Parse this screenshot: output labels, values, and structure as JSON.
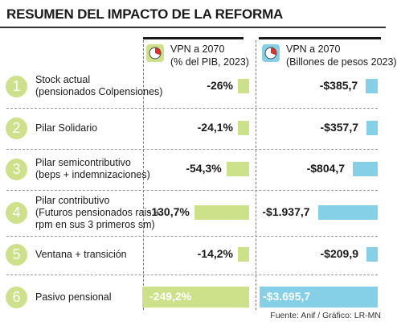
{
  "title": "RESUMEN DEL IMPACTO DE LA REFORMA",
  "colors": {
    "green": "#cde08a",
    "blue": "#85d0e6",
    "circle": "#cde08a"
  },
  "columns": [
    {
      "line1": "VPN a 2070",
      "line2": "(% del PIB, 2023)",
      "icon": "pie-chart-icon"
    },
    {
      "line1": "VPN a 2070",
      "line2": "(Billones de pesos 2023)",
      "icon": "pie-chart-icon"
    }
  ],
  "chart_data": {
    "type": "bar",
    "title": "RESUMEN DEL IMPACTO DE LA REFORMA",
    "categories": [
      "Stock actual (pensionados Colpensiones)",
      "Pilar Solidario",
      "Pilar semicontributivo (beps + indemnizaciones)",
      "Pilar contributivo (Futuros pensionados rais + rpm en sus 3 primeros sm)",
      "Ventana + transición",
      "Pasivo pensional"
    ],
    "series": [
      {
        "name": "VPN a 2070 (% del PIB, 2023)",
        "values": [
          -26,
          -24.1,
          -54.3,
          -130.7,
          -14.2,
          -249.2
        ]
      },
      {
        "name": "VPN a 2070 (Billones de pesos 2023)",
        "values": [
          -385.7,
          -357.7,
          -804.7,
          -1937.7,
          -209.9,
          -3695.7
        ]
      }
    ]
  },
  "rows": [
    {
      "num": "1",
      "label_lines": [
        "Stock actual",
        "(pensionados Colpensiones)"
      ],
      "pib": "-26%",
      "billones": "-$385,7"
    },
    {
      "num": "2",
      "label_lines": [
        "Pilar Solidario"
      ],
      "pib": "-24,1%",
      "billones": "-$357,7"
    },
    {
      "num": "3",
      "label_lines": [
        "Pilar semicontributivo",
        "(beps + indemnizaciones)"
      ],
      "pib": "-54,3%",
      "billones": "-$804,7"
    },
    {
      "num": "4",
      "label_lines": [
        "Pilar contributivo",
        "(Futuros pensionados rais +",
        "rpm en sus 3 primeros sm)"
      ],
      "pib": "-130,7%",
      "billones": "-$1.937,7"
    },
    {
      "num": "5",
      "label_lines": [
        "Ventana + transición"
      ],
      "pib": "-14,2%",
      "billones": "-$209,9"
    },
    {
      "num": "6",
      "label_lines": [
        "Pasivo pensional"
      ],
      "pib": "-249,2%",
      "billones": "-$3.695,7"
    }
  ],
  "source": "Fuente: Anif / Gráfico: LR-MN"
}
